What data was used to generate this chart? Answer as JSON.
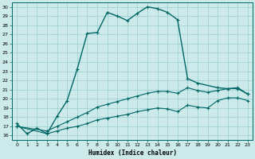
{
  "xlabel": "Humidex (Indice chaleur)",
  "background_color": "#cceaea",
  "grid_color": "#99cccc",
  "line_color": "#006666",
  "xlim": [
    -0.5,
    23.5
  ],
  "ylim": [
    15.5,
    30.5
  ],
  "yticks": [
    16,
    17,
    18,
    19,
    20,
    21,
    22,
    23,
    24,
    25,
    26,
    27,
    28,
    29,
    30
  ],
  "xticks": [
    0,
    1,
    2,
    3,
    4,
    5,
    6,
    7,
    8,
    9,
    10,
    11,
    12,
    13,
    14,
    15,
    16,
    17,
    18,
    19,
    20,
    21,
    22,
    23
  ],
  "line1_x": [
    0,
    1,
    2,
    3,
    4,
    5,
    6,
    7,
    8,
    9,
    10,
    11,
    12,
    13,
    14,
    15,
    16,
    17,
    18,
    20,
    21,
    22,
    23
  ],
  "line1_y": [
    17.3,
    16.2,
    16.8,
    16.2,
    18.1,
    19.8,
    23.2,
    27.1,
    27.2,
    29.4,
    29.0,
    28.5,
    29.3,
    30.0,
    29.8,
    29.4,
    28.6,
    22.2,
    21.7,
    21.2,
    21.1,
    21.2,
    20.5
  ],
  "line2_x": [
    0,
    3,
    4,
    5,
    6,
    7,
    8,
    9,
    10,
    11,
    12,
    13,
    14,
    15,
    16,
    17,
    18,
    19,
    20,
    21,
    22,
    23
  ],
  "line2_y": [
    17.0,
    16.5,
    17.0,
    17.5,
    18.0,
    18.5,
    19.1,
    19.4,
    19.7,
    20.0,
    20.3,
    20.6,
    20.8,
    20.8,
    20.6,
    21.2,
    20.9,
    20.7,
    20.9,
    21.1,
    21.1,
    20.5
  ],
  "line3_x": [
    0,
    3,
    4,
    5,
    6,
    7,
    8,
    9,
    10,
    11,
    12,
    13,
    14,
    15,
    16,
    17,
    18,
    19,
    20,
    21,
    22,
    23
  ],
  "line3_y": [
    17.0,
    16.2,
    16.5,
    16.8,
    17.0,
    17.3,
    17.7,
    17.9,
    18.1,
    18.3,
    18.6,
    18.8,
    19.0,
    18.9,
    18.6,
    19.3,
    19.1,
    19.0,
    19.8,
    20.1,
    20.1,
    19.8
  ]
}
